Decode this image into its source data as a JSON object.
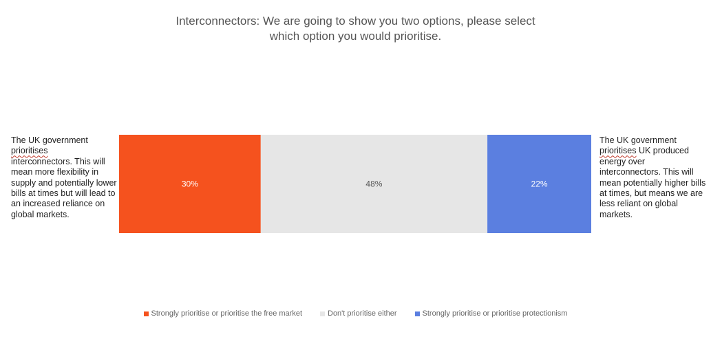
{
  "title_line1": "Interconnectors: We are going to show you two options, please select",
  "title_line2": "which option you would prioritise.",
  "left_text": {
    "w1": "The UK government",
    "w2": "prioritises",
    "w3": "interconnectors. This will mean more flexibility in supply and potentially lower bills at times but will lead to an increased reliance on global markets."
  },
  "right_text": {
    "w1": "The UK government",
    "w2": "prioritises",
    "w3": " UK produced energy over interconnectors. This will mean potentially higher bills at times, but means we are less reliant on global markets."
  },
  "chart_data": {
    "type": "bar",
    "orientation": "horizontal",
    "stacked": true,
    "unit": "%",
    "xlim": [
      0,
      100
    ],
    "series": [
      {
        "name": "Strongly prioritise or prioritise the free market",
        "value": 30,
        "label": "30%",
        "color": "#f5521e",
        "label_color": "#ffffff"
      },
      {
        "name": "Don't prioritise either",
        "value": 48,
        "label": "48%",
        "color": "#e6e6e6",
        "label_color": "#555555"
      },
      {
        "name": "Strongly prioritise or prioritise protectionism",
        "value": 22,
        "label": "22%",
        "color": "#5b7fe0",
        "label_color": "#ffffff"
      }
    ],
    "legend_position": "bottom"
  }
}
